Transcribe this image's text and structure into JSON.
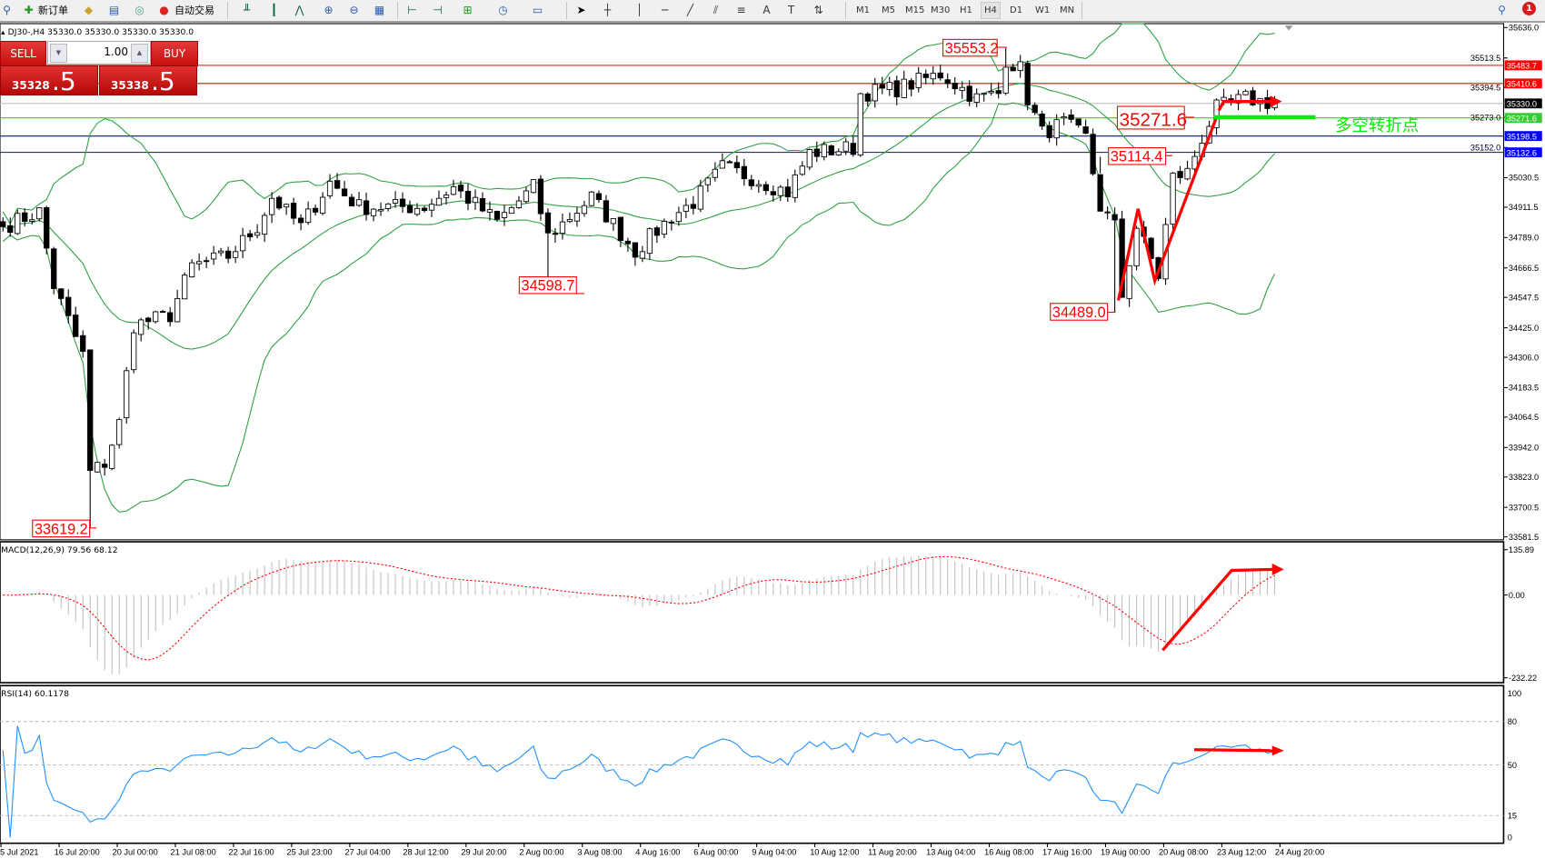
{
  "toolbar": {
    "new_order_label": "新订单",
    "auto_trade_label": "自动交易",
    "timeframes": [
      "M1",
      "M5",
      "M15",
      "M30",
      "H1",
      "H4",
      "D1",
      "W1",
      "MN"
    ],
    "active_timeframe": "H4",
    "notification_count": "1",
    "icons": [
      "search-icon",
      "new-order-icon",
      "gold-icon",
      "data-window-icon",
      "signals-icon",
      "auto-trade-icon",
      "bar-chart-icon",
      "candlestick-icon",
      "line-chart-icon",
      "zoom-in-icon",
      "zoom-out-icon",
      "tile-windows-icon",
      "chart-shift-icon",
      "autoscroll-icon",
      "indicators-icon",
      "periods-icon",
      "templates-icon",
      "cursor-icon",
      "crosshair-icon",
      "vertical-line-icon",
      "horizontal-line-icon",
      "trendline-icon",
      "fibonacci-icon",
      "channel-icon",
      "text-icon",
      "text-label-icon",
      "arrows-icon"
    ]
  },
  "symbol_header": "DJ30-,H4  35330.0 35330.0 35330.0 35330.0",
  "trade_panel": {
    "sell_label": "SELL",
    "buy_label": "BUY",
    "lot": "1.00",
    "sell_price_small": "35328",
    "sell_price_big": ".5",
    "buy_price_small": "35338",
    "buy_price_big": ".5"
  },
  "price_axis": [
    "35636.0",
    "35513.5",
    "35394.5",
    "35273.0",
    "35152.0",
    "35030.5",
    "34911.5",
    "34789.0",
    "34666.5",
    "34547.5",
    "34425.0",
    "34306.0",
    "34183.5",
    "34064.5",
    "33942.0",
    "33823.0",
    "33700.5",
    "33581.5"
  ],
  "levels": [
    {
      "price": "35483.7",
      "color": "#ff0000"
    },
    {
      "price": "35410.6",
      "color": "#ff0000"
    },
    {
      "price": "35330.0",
      "color": "#000000",
      "line": "#c0c0c0"
    },
    {
      "price": "35271.6",
      "color": "#33cc33"
    },
    {
      "price": "35198.5",
      "color": "#0000ff"
    },
    {
      "price": "35132.6",
      "color": "#0000ff"
    }
  ],
  "annotations": [
    "35553.2",
    "34598.7",
    "33619.2",
    "35271.6",
    "35114.4",
    "34489.0"
  ],
  "turning_point_text": "多空转折点",
  "time_axis": [
    "5 Jul 2021",
    "16 Jul 20:00",
    "20 Jul 00:00",
    "21 Jul 08:00",
    "22 Jul 16:00",
    "25 Jul 23:00",
    "27 Jul 04:00",
    "28 Jul 12:00",
    "29 Jul 20:00",
    "2 Aug 00:00",
    "3 Aug 08:00",
    "4 Aug 16:00",
    "6 Aug 00:00",
    "9 Aug 04:00",
    "10 Aug 12:00",
    "11 Aug 20:00",
    "13 Aug 04:00",
    "16 Aug 08:00",
    "17 Aug 16:00",
    "19 Aug 00:00",
    "20 Aug 08:00",
    "23 Aug 12:00",
    "24 Aug 20:00"
  ],
  "macd": {
    "header": "MACD(12,26,9) 79.56 68.12",
    "axis": [
      "135.89",
      "0.00",
      "-232.22"
    ]
  },
  "rsi": {
    "header": "RSI(14) 60.1178",
    "axis": [
      "100",
      "80",
      "50",
      "15",
      "0"
    ]
  },
  "colors": {
    "bull": "#ffffff",
    "bear": "#000000",
    "bands": "#2ea043",
    "macd_signal": "#ff0000",
    "macd_hist": "#c0c0c0",
    "rsi": "#1e90ff",
    "arrow": "#ff0000",
    "turning_line": "#00ee00"
  },
  "chart_data": {
    "type": "candlestick",
    "symbol": "DJ30-",
    "timeframe": "H4",
    "ylim": [
      33581.5,
      35636.0
    ],
    "close_path": [
      [
        0,
        34833
      ],
      [
        5,
        34893
      ],
      [
        7,
        34595
      ],
      [
        11,
        34317
      ],
      [
        12,
        33840
      ],
      [
        14,
        33880
      ],
      [
        16,
        34040
      ],
      [
        18,
        34436
      ],
      [
        23,
        34476
      ],
      [
        26,
        34674
      ],
      [
        31,
        34714
      ],
      [
        35,
        34833
      ],
      [
        37,
        34952
      ],
      [
        41,
        34833
      ],
      [
        45,
        35012
      ],
      [
        49,
        34913
      ],
      [
        58,
        34913
      ],
      [
        62,
        34992
      ],
      [
        68,
        34853
      ],
      [
        73,
        34992
      ],
      [
        75,
        34793
      ],
      [
        81,
        34952
      ],
      [
        87,
        34734
      ],
      [
        92,
        34873
      ],
      [
        95,
        34932
      ],
      [
        99,
        35072
      ],
      [
        103,
        35032
      ],
      [
        108,
        34972
      ],
      [
        111,
        35131
      ],
      [
        117,
        35151
      ],
      [
        118,
        35370
      ],
      [
        123,
        35390
      ],
      [
        129,
        35449
      ],
      [
        132,
        35390
      ],
      [
        134,
        35350
      ],
      [
        137,
        35370
      ],
      [
        138,
        35509
      ],
      [
        140,
        35469
      ],
      [
        141,
        35350
      ],
      [
        143,
        35211
      ],
      [
        146,
        35251
      ],
      [
        149,
        35191
      ],
      [
        151,
        34913
      ],
      [
        153,
        34833
      ],
      [
        154,
        34555
      ],
      [
        156,
        34833
      ],
      [
        159,
        34634
      ],
      [
        161,
        35032
      ],
      [
        163,
        35052
      ],
      [
        165,
        35191
      ],
      [
        167,
        35310
      ],
      [
        171,
        35350
      ],
      [
        175,
        35330
      ]
    ],
    "extremes": [
      {
        "label": "35553.2",
        "type": "high"
      },
      {
        "label": "34598.7",
        "type": "low"
      },
      {
        "label": "33619.2",
        "type": "low"
      },
      {
        "label": "35114.4",
        "type": "low"
      },
      {
        "label": "34489.0",
        "type": "low"
      }
    ]
  }
}
